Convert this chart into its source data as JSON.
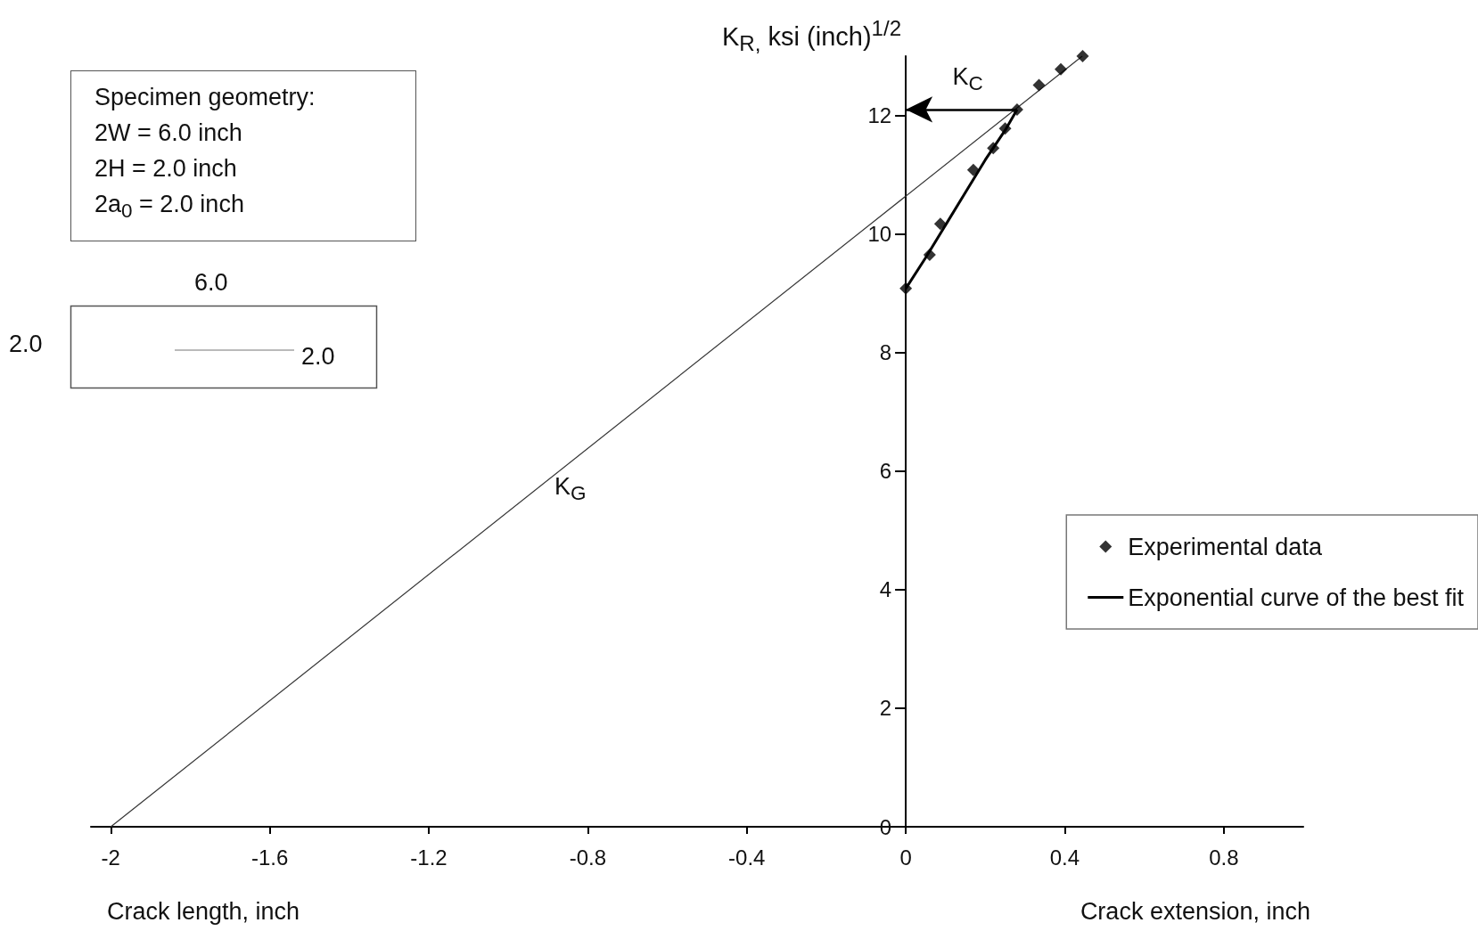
{
  "chart_data": {
    "type": "scatter",
    "xlabel": "Crack extension, inch",
    "ylabel": "K$_{R,}$ ksi (inch)$^{1/2}$",
    "xlim": [
      -2.05,
      1.0
    ],
    "xticks": [
      -2,
      -1.6,
      -1.2,
      -0.8,
      -0.4,
      0,
      0.4,
      0.8
    ],
    "ylim": [
      0,
      13
    ],
    "yticks": [
      0,
      2,
      4,
      6,
      8,
      10,
      12
    ],
    "grid": false,
    "legend": "right",
    "marker": "diamond",
    "series": [
      {
        "name": "Experimental data",
        "type": "scatter",
        "color": "#000000",
        "x": [
          0,
          0.06,
          0.087,
          0.17,
          0.22,
          0.25,
          0.28,
          0.335,
          0.39,
          0.445
        ],
        "values": [
          9.08,
          9.65,
          10.17,
          11.08,
          11.45,
          11.78,
          12.1,
          12.51,
          12.78,
          13.0
        ]
      },
      {
        "name": "Exponential curve of the best fit",
        "type": "line",
        "color": "#000000",
        "marker": "none",
        "x": [
          0,
          0.05,
          0.1,
          0.15,
          0.2,
          0.25,
          0.28
        ],
        "values": [
          9.08,
          9.6,
          10.15,
          10.7,
          11.25,
          11.75,
          12.1
        ]
      },
      {
        "type": "line",
        "color": "#333333",
        "marker": "none",
        "x": [
          -2,
          0.444
        ],
        "values": [
          0,
          13
        ]
      }
    ],
    "annotations": [
      "Crack length, inch",
      "K$_{G}$",
      {
        "text": "K$_{C}$",
        "x": 0.28,
        "y": 12.1
      },
      "Specimen geometry:",
      "2W = 6.0 inch",
      "2H = 2.0 inch",
      "2a$_{0}$ = 2.0 inch",
      "6.0",
      "2.0",
      "2.0"
    ]
  }
}
